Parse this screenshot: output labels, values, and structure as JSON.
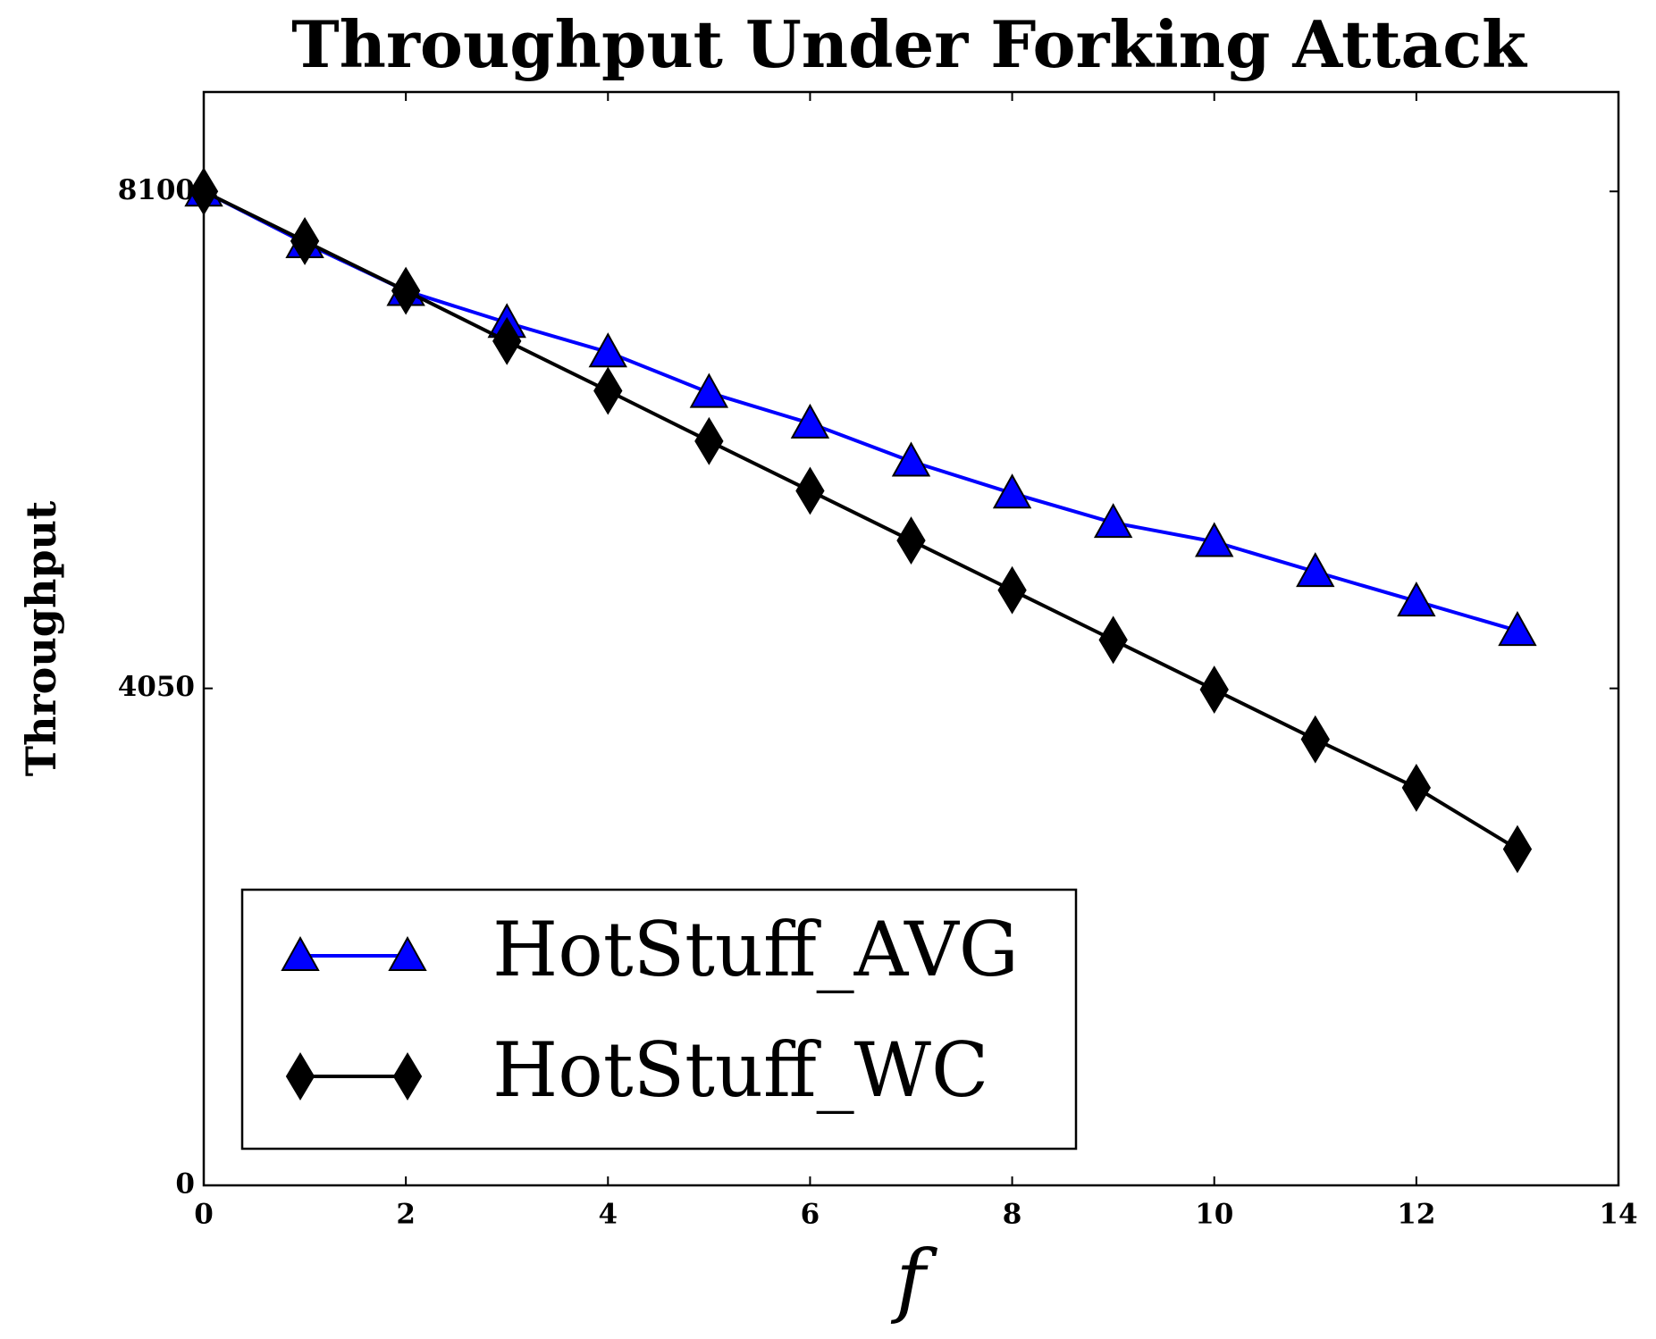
{
  "chart_data": {
    "type": "line",
    "title": "Throughput Under Forking Attack",
    "x_label": "f",
    "y_label": "Throughput",
    "x": [
      0,
      1,
      2,
      3,
      4,
      5,
      6,
      7,
      8,
      9,
      10,
      11,
      12,
      13
    ],
    "series": [
      {
        "name": "HotStuff_AVG",
        "color": "#0000ff",
        "marker": "triangle",
        "values": [
          8100,
          7680,
          7290,
          7030,
          6790,
          6460,
          6210,
          5900,
          5640,
          5400,
          5245,
          5000,
          4760,
          4520
        ]
      },
      {
        "name": "HotStuff_WC",
        "color": "#000000",
        "marker": "diamond",
        "values": [
          8100,
          7695,
          7290,
          6880,
          6475,
          6065,
          5660,
          5255,
          4850,
          4445,
          4040,
          3635,
          3240,
          2740
        ]
      }
    ],
    "xlim": [
      0,
      14
    ],
    "xticks": [
      0,
      2,
      4,
      6,
      8,
      10,
      12,
      14
    ],
    "ylim": [
      0,
      8910
    ],
    "yticks": [
      0,
      4050,
      8100
    ],
    "legend": "lower left"
  }
}
